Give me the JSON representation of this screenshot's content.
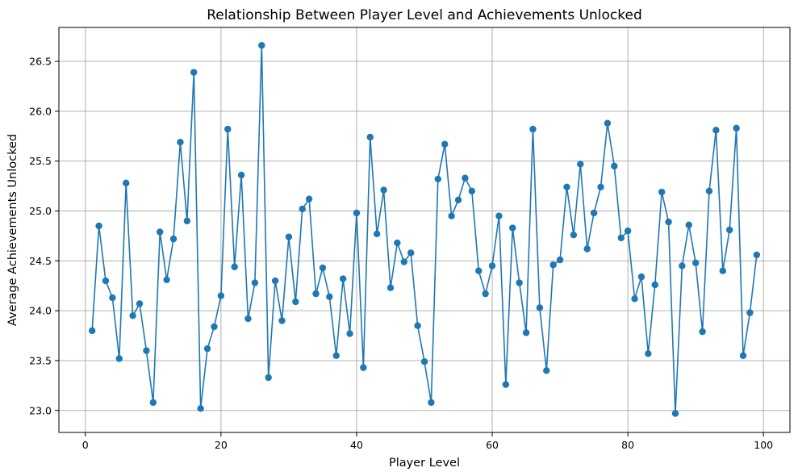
{
  "chart_data": {
    "type": "line",
    "title": "Relationship Between Player Level and Achievements Unlocked",
    "xlabel": "Player Level",
    "ylabel": "Average Achievements Unlocked",
    "xlim": [
      -3.9,
      103.9
    ],
    "ylim": [
      22.78,
      26.84
    ],
    "xticks": [
      0,
      20,
      40,
      60,
      80,
      100
    ],
    "yticks": [
      23.0,
      23.5,
      24.0,
      24.5,
      25.0,
      25.5,
      26.0,
      26.5
    ],
    "ytick_labels": [
      "23.0",
      "23.5",
      "24.0",
      "24.5",
      "25.0",
      "25.5",
      "26.0",
      "26.5"
    ],
    "grid": true,
    "markers": "circle",
    "series": [
      {
        "color": "#1f77b4",
        "x": [
          1,
          2,
          3,
          4,
          5,
          6,
          7,
          8,
          9,
          10,
          11,
          12,
          13,
          14,
          15,
          16,
          17,
          18,
          19,
          20,
          21,
          22,
          23,
          24,
          25,
          26,
          27,
          28,
          29,
          30,
          31,
          32,
          33,
          34,
          35,
          36,
          37,
          38,
          39,
          40,
          41,
          42,
          43,
          44,
          45,
          46,
          47,
          48,
          49,
          50,
          51,
          52,
          53,
          54,
          55,
          56,
          57,
          58,
          59,
          60,
          61,
          62,
          63,
          64,
          65,
          66,
          67,
          68,
          69,
          70,
          71,
          72,
          73,
          74,
          75,
          76,
          77,
          78,
          79,
          80,
          81,
          82,
          83,
          84,
          85,
          86,
          87,
          88,
          89,
          90,
          91,
          92,
          93,
          94,
          95,
          96,
          97,
          98,
          99
        ],
        "y": [
          23.8,
          24.85,
          24.3,
          24.13,
          23.52,
          25.28,
          23.95,
          24.07,
          23.6,
          23.08,
          24.79,
          24.31,
          24.72,
          25.69,
          24.9,
          26.39,
          23.02,
          23.62,
          23.84,
          24.15,
          25.82,
          24.44,
          25.36,
          23.92,
          24.28,
          26.66,
          23.33,
          24.3,
          23.9,
          24.74,
          24.09,
          25.02,
          25.12,
          24.17,
          24.43,
          24.14,
          23.55,
          24.32,
          23.77,
          24.98,
          23.43,
          25.74,
          24.77,
          25.21,
          24.23,
          24.68,
          24.49,
          24.58,
          23.85,
          23.49,
          23.08,
          25.32,
          25.67,
          24.95,
          25.11,
          25.33,
          25.2,
          24.4,
          24.17,
          24.45,
          24.95,
          23.26,
          24.83,
          24.28,
          23.78,
          25.82,
          24.03,
          23.4,
          24.46,
          24.51,
          25.24,
          24.76,
          25.47,
          24.62,
          24.98,
          25.24,
          25.88,
          25.45,
          24.73,
          24.8,
          24.12,
          24.34,
          23.57,
          24.26,
          25.19,
          24.89,
          22.97,
          24.45,
          24.86,
          24.48,
          23.79,
          25.2,
          25.81,
          24.4,
          24.81,
          25.83,
          23.55,
          23.98,
          24.56
        ]
      }
    ]
  }
}
